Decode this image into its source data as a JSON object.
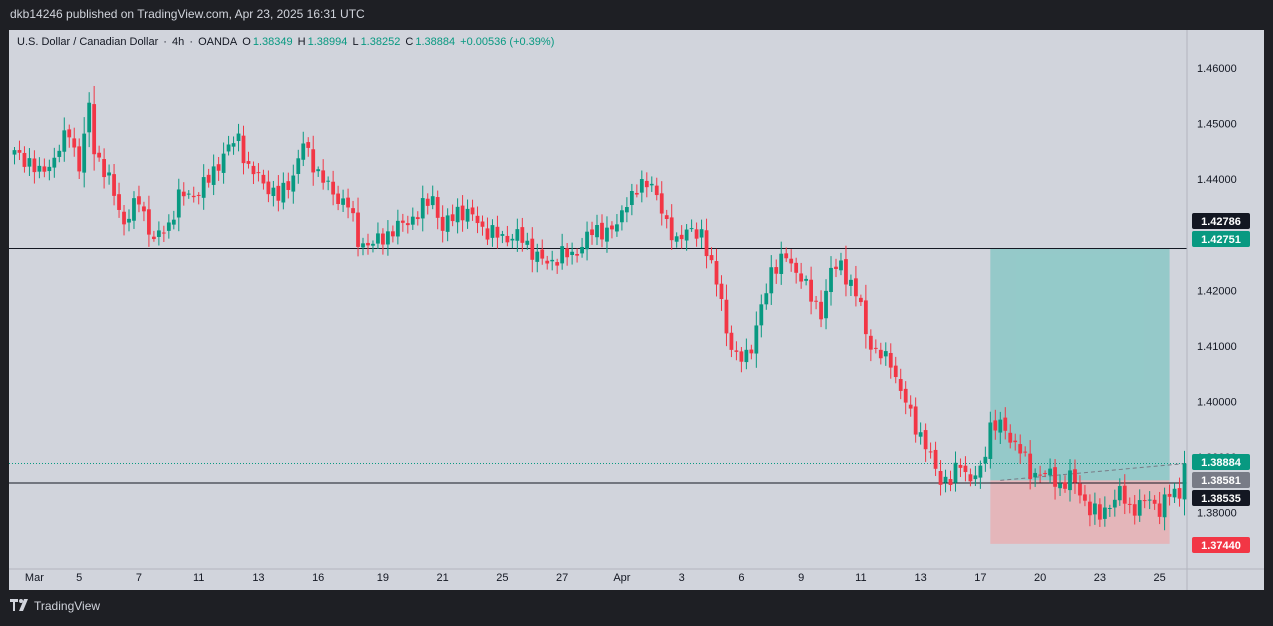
{
  "header": {
    "published": "dkb14246 published on TradingView.com, Apr 23, 2025 16:31 UTC"
  },
  "legend": {
    "symbol": "U.S. Dollar / Canadian Dollar",
    "interval": "4h",
    "source": "OANDA",
    "open_label": "O",
    "open": "1.38349",
    "high_label": "H",
    "high": "1.38994",
    "low_label": "L",
    "low": "1.38252",
    "close_label": "C",
    "close": "1.38884",
    "change": "+0.00536 (+0.39%)",
    "sep": "·"
  },
  "footer": {
    "brand": "TradingView"
  },
  "colors": {
    "up": "#089981",
    "down": "#f23645",
    "bg": "#d1d4dc",
    "text": "#131722",
    "target": "#80c6c3",
    "stop": "#e8aeb2"
  },
  "chart_data": {
    "type": "candlestick",
    "title": "U.S. Dollar / Canadian Dollar · 4h · OANDA",
    "ylim": [
      1.3688,
      1.4668
    ],
    "y_ticks": [
      1.38,
      1.39,
      1.4,
      1.41,
      1.42,
      1.43,
      1.44,
      1.45,
      1.46
    ],
    "y_tick_labels": [
      "1.38000",
      "1.39000",
      "1.40000",
      "1.41000",
      "1.42000",
      "",
      "1.44000",
      "1.45000",
      "1.46000"
    ],
    "x_ticks": [
      {
        "label": "Mar",
        "bar": 4
      },
      {
        "label": "5",
        "bar": 13
      },
      {
        "label": "7",
        "bar": 25
      },
      {
        "label": "11",
        "bar": 37
      },
      {
        "label": "13",
        "bar": 49
      },
      {
        "label": "16",
        "bar": 61
      },
      {
        "label": "19",
        "bar": 74
      },
      {
        "label": "21",
        "bar": 86
      },
      {
        "label": "25",
        "bar": 98
      },
      {
        "label": "27",
        "bar": 110
      },
      {
        "label": "Apr",
        "bar": 122
      },
      {
        "label": "3",
        "bar": 134
      },
      {
        "label": "6",
        "bar": 146
      },
      {
        "label": "9",
        "bar": 158
      },
      {
        "label": "11",
        "bar": 170
      },
      {
        "label": "13",
        "bar": 182
      },
      {
        "label": "17",
        "bar": 194
      },
      {
        "label": "20",
        "bar": 206
      },
      {
        "label": "23",
        "bar": 218
      },
      {
        "label": "25",
        "bar": 230
      }
    ],
    "bar_count": 236,
    "anchors": [
      [
        0,
        1.4445
      ],
      [
        3,
        1.4432
      ],
      [
        5,
        1.4408
      ],
      [
        8,
        1.4438
      ],
      [
        11,
        1.4487
      ],
      [
        13,
        1.4422
      ],
      [
        15,
        1.4528
      ],
      [
        16,
        1.4455
      ],
      [
        19,
        1.4396
      ],
      [
        22,
        1.4322
      ],
      [
        25,
        1.4362
      ],
      [
        28,
        1.4288
      ],
      [
        31,
        1.4318
      ],
      [
        33,
        1.4368
      ],
      [
        36,
        1.4372
      ],
      [
        39,
        1.4398
      ],
      [
        42,
        1.4445
      ],
      [
        45,
        1.4475
      ],
      [
        47,
        1.4418
      ],
      [
        50,
        1.4395
      ],
      [
        53,
        1.4365
      ],
      [
        56,
        1.4408
      ],
      [
        58,
        1.4462
      ],
      [
        61,
        1.4412
      ],
      [
        64,
        1.4372
      ],
      [
        67,
        1.4355
      ],
      [
        69,
        1.4288
      ],
      [
        72,
        1.4282
      ],
      [
        75,
        1.4302
      ],
      [
        78,
        1.4318
      ],
      [
        81,
        1.4338
      ],
      [
        84,
        1.4368
      ],
      [
        86,
        1.4308
      ],
      [
        89,
        1.4345
      ],
      [
        92,
        1.4332
      ],
      [
        95,
        1.4305
      ],
      [
        98,
        1.4295
      ],
      [
        101,
        1.4298
      ],
      [
        104,
        1.4272
      ],
      [
        107,
        1.4245
      ],
      [
        110,
        1.4268
      ],
      [
        112,
        1.4258
      ],
      [
        115,
        1.4298
      ],
      [
        118,
        1.4308
      ],
      [
        121,
        1.4312
      ],
      [
        123,
        1.4365
      ],
      [
        126,
        1.4385
      ],
      [
        128,
        1.4398
      ],
      [
        131,
        1.4312
      ],
      [
        133,
        1.4295
      ],
      [
        135,
        1.4302
      ],
      [
        138,
        1.4306
      ],
      [
        140,
        1.4238
      ],
      [
        142,
        1.4188
      ],
      [
        143,
        1.4125
      ],
      [
        145,
        1.4072
      ],
      [
        148,
        1.4098
      ],
      [
        150,
        1.4165
      ],
      [
        152,
        1.4238
      ],
      [
        155,
        1.4258
      ],
      [
        158,
        1.4225
      ],
      [
        160,
        1.4185
      ],
      [
        162,
        1.4162
      ],
      [
        164,
        1.4232
      ],
      [
        166,
        1.4248
      ],
      [
        168,
        1.4208
      ],
      [
        170,
        1.4172
      ],
      [
        171,
        1.4125
      ],
      [
        173,
        1.4085
      ],
      [
        176,
        1.4075
      ],
      [
        178,
        1.4015
      ],
      [
        180,
        1.3978
      ],
      [
        182,
        1.3938
      ],
      [
        184,
        1.3898
      ],
      [
        186,
        1.3862
      ],
      [
        188,
        1.3855
      ],
      [
        190,
        1.3892
      ],
      [
        192,
        1.3858
      ],
      [
        194,
        1.3872
      ],
      [
        196,
        1.3958
      ],
      [
        198,
        1.3955
      ],
      [
        200,
        1.3935
      ],
      [
        202,
        1.3915
      ],
      [
        204,
        1.3868
      ],
      [
        206,
        1.3875
      ],
      [
        208,
        1.3865
      ],
      [
        210,
        1.3848
      ],
      [
        212,
        1.3865
      ],
      [
        214,
        1.3835
      ],
      [
        216,
        1.3808
      ],
      [
        218,
        1.3792
      ],
      [
        220,
        1.3818
      ],
      [
        222,
        1.3835
      ],
      [
        224,
        1.3808
      ],
      [
        226,
        1.3815
      ],
      [
        228,
        1.3822
      ],
      [
        230,
        1.3808
      ],
      [
        232,
        1.3832
      ],
      [
        234,
        1.3835
      ],
      [
        235,
        1.38884
      ]
    ],
    "horizontal_lines": [
      {
        "value": 1.42751,
        "label": "1.42751"
      },
      {
        "value": 1.38535,
        "label": "1.38535"
      }
    ],
    "price_labels": [
      {
        "value": "1.42786",
        "color": "#131722"
      },
      {
        "value": "1.42751",
        "color": "#089981"
      },
      {
        "value": "1.38884",
        "color": "#089981"
      },
      {
        "value": "1.38581",
        "color": "#787b86"
      },
      {
        "value": "1.38535",
        "color": "#131722"
      },
      {
        "value": "1.37440",
        "color": "#f23645"
      }
    ],
    "position": {
      "type": "long",
      "entry": 1.38581,
      "target": 1.42751,
      "stop": 1.3744,
      "start_bar": 196,
      "end_bar": 232
    },
    "last_price": 1.38884
  }
}
